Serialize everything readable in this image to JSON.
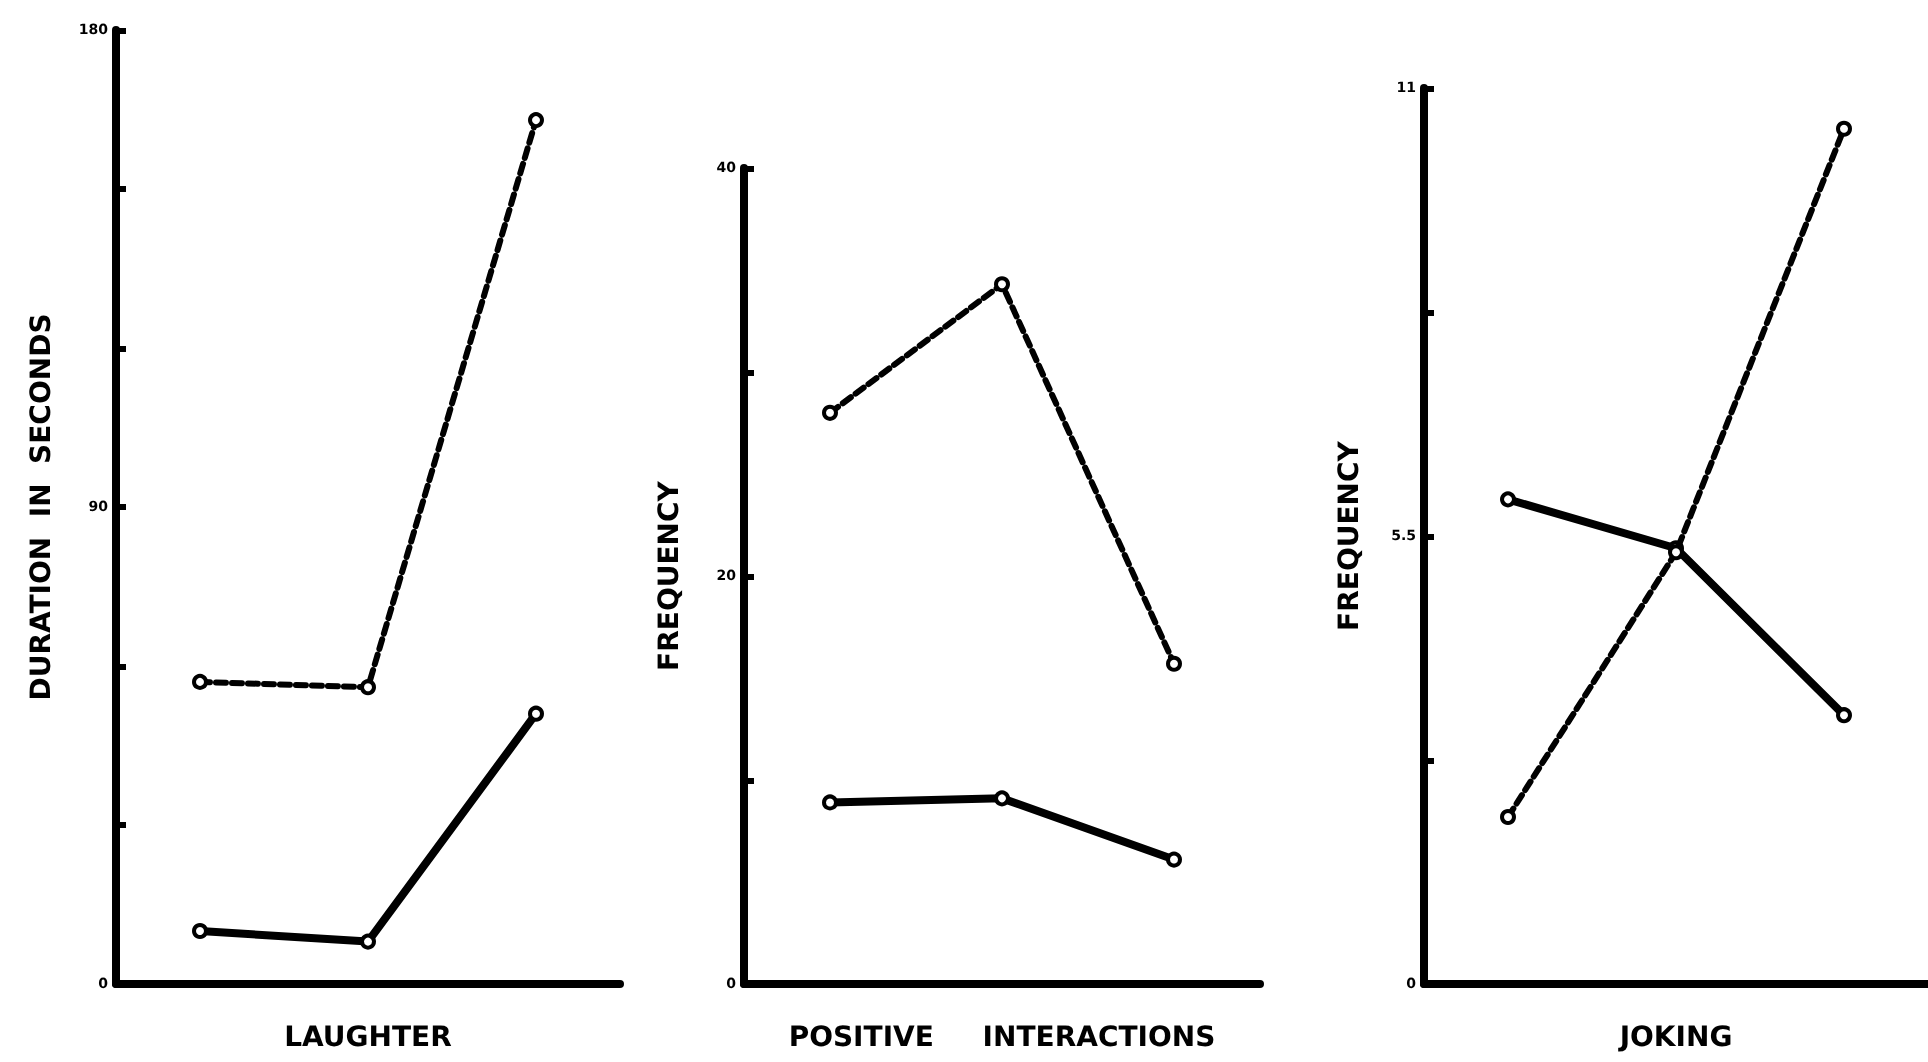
{
  "chart_data": [
    {
      "type": "line",
      "xlabel": "LAUGHTER",
      "ylabel": "DURATION  IN  SECONDS",
      "categories": [
        null,
        null,
        null
      ],
      "ylim": [
        0,
        180
      ],
      "yticks": [
        0,
        {
          "value": 30,
          "label": null
        },
        {
          "value": 60,
          "label": null
        },
        90,
        {
          "value": 120,
          "label": null
        },
        {
          "value": 150,
          "label": null
        },
        180
      ],
      "marker": "circle",
      "grid": false,
      "tick_labels": "y",
      "series": [
        {
          "color": "#000000",
          "line_style": "dashed",
          "values": [
            57,
            56,
            163
          ]
        },
        {
          "color": "#000000",
          "line_style": "solid",
          "values": [
            10,
            8,
            51
          ]
        }
      ]
    },
    {
      "type": "line",
      "xlabel": "POSITIVE     INTERACTIONS",
      "ylabel": "FREQUENCY",
      "categories": [
        null,
        null,
        null
      ],
      "ylim": [
        0,
        40
      ],
      "yticks": [
        0,
        {
          "value": 10,
          "label": null
        },
        20,
        {
          "value": 30,
          "label": null
        },
        40
      ],
      "marker": "circle",
      "grid": false,
      "tick_labels": "y",
      "series": [
        {
          "color": "#000000",
          "line_style": "dashed",
          "values": [
            28,
            34.3,
            15.7
          ]
        },
        {
          "color": "#000000",
          "line_style": "solid",
          "values": [
            8.9,
            9.1,
            6.1
          ]
        }
      ]
    },
    {
      "type": "line",
      "xlabel": "JOKING",
      "ylabel": "FREQUENCY",
      "categories": [
        null,
        null,
        null
      ],
      "ylim": [
        0,
        11
      ],
      "yticks": [
        0,
        {
          "value": 2.75,
          "label": null
        },
        5.5,
        {
          "value": 8.25,
          "label": null
        },
        11
      ],
      "marker": "circle",
      "grid": false,
      "tick_labels": "y",
      "series": [
        {
          "color": "#000000",
          "line_style": "dashed",
          "values": [
            2.05,
            5.3,
            10.5
          ]
        },
        {
          "color": "#000000",
          "line_style": "solid",
          "values": [
            5.95,
            5.35,
            3.3
          ]
        }
      ]
    }
  ]
}
